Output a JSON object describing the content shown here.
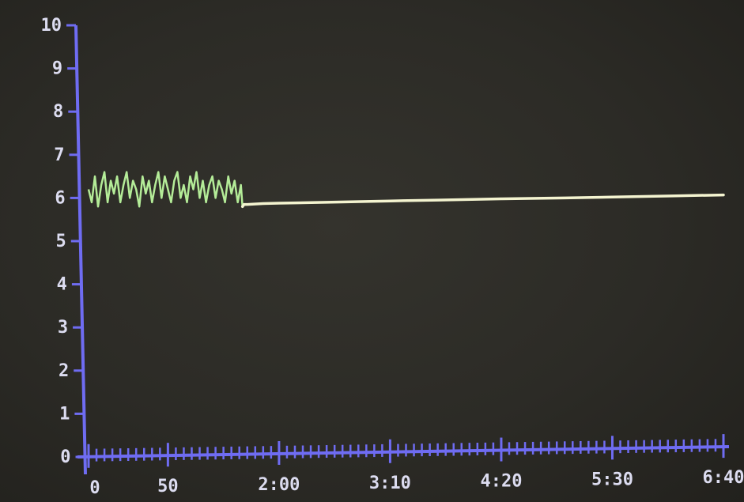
{
  "chart_data": {
    "type": "line",
    "title": "",
    "xlabel": "",
    "ylabel": "",
    "x_tick_labels": [
      "0",
      "50",
      "2:00",
      "3:10",
      "4:20",
      "5:30",
      "6:40"
    ],
    "x_tick_values_seconds": [
      0,
      50,
      120,
      190,
      260,
      330,
      400
    ],
    "y_tick_labels": [
      "0",
      "1",
      "2",
      "3",
      "4",
      "5",
      "6",
      "7",
      "8",
      "9",
      "10"
    ],
    "xlim": [
      0,
      400
    ],
    "ylim": [
      0,
      10
    ],
    "grid": false,
    "colors": {
      "axis": "#6f6cf2",
      "noisy": "#b4ec98",
      "steady": "#f4f4d0",
      "labels": "#dcdcf0"
    },
    "series": [
      {
        "x": [
          0,
          2,
          4,
          6,
          8,
          10,
          12,
          14,
          16,
          18,
          20,
          22,
          24,
          26,
          28,
          30,
          32,
          34,
          36,
          38,
          40,
          42,
          44,
          46,
          48,
          50,
          52,
          54,
          56,
          58,
          60,
          62,
          64,
          66,
          68,
          70,
          72,
          74,
          76,
          78,
          80,
          82,
          84,
          86,
          88,
          90,
          92,
          94,
          96,
          97,
          98,
          100,
          110,
          120,
          150,
          190,
          220,
          260,
          300,
          330,
          370,
          400
        ],
        "y": [
          6.2,
          5.9,
          6.5,
          5.8,
          6.3,
          6.6,
          5.9,
          6.4,
          6.1,
          6.5,
          5.9,
          6.3,
          6.6,
          6.0,
          6.4,
          6.2,
          5.8,
          6.5,
          6.1,
          6.4,
          5.9,
          6.3,
          6.6,
          6.0,
          6.5,
          6.2,
          5.9,
          6.4,
          6.6,
          6.0,
          6.3,
          5.9,
          6.5,
          6.2,
          6.6,
          6.0,
          6.4,
          5.9,
          6.3,
          6.5,
          6.0,
          6.4,
          6.2,
          5.9,
          6.5,
          6.1,
          6.4,
          5.9,
          6.3,
          5.8,
          5.85,
          5.85,
          5.87,
          5.88,
          5.9,
          5.93,
          5.95,
          5.98,
          6.0,
          6.02,
          6.05,
          6.07
        ]
      }
    ]
  }
}
